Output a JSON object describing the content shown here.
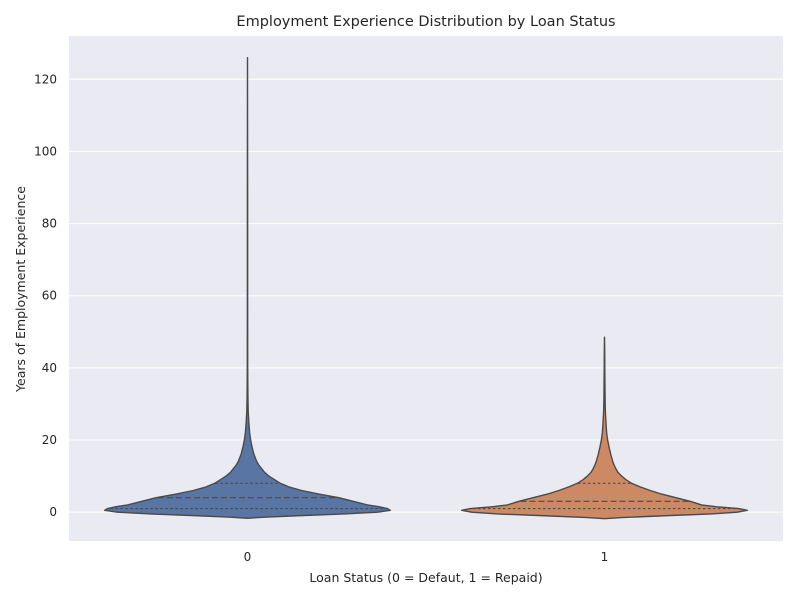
{
  "chart_data": {
    "type": "violin",
    "title": "Employment Experience Distribution by Loan Status",
    "xlabel": "Loan Status (0 = Defaut, 1 = Repaid)",
    "ylabel": "Years of Employment Experience",
    "categories": [
      "0",
      "1"
    ],
    "ylim": [
      -8,
      132
    ],
    "yticks": [
      0,
      20,
      40,
      60,
      80,
      100,
      120
    ],
    "grid": true,
    "background": "#eaeaf2",
    "gridColor": "#ffffff",
    "outlineColor": "#4a4a4a",
    "series": [
      {
        "category": "0",
        "color": "#5875a4",
        "quartiles": [
          1,
          4,
          8
        ],
        "profile": [
          [
            -1.7,
            0.0
          ],
          [
            -1.4,
            0.12
          ],
          [
            -1.0,
            0.35
          ],
          [
            -0.5,
            0.68
          ],
          [
            0.0,
            0.91
          ],
          [
            0.5,
            1.0
          ],
          [
            1.0,
            0.98
          ],
          [
            1.5,
            0.92
          ],
          [
            2.0,
            0.84
          ],
          [
            3.0,
            0.74
          ],
          [
            4.0,
            0.64
          ],
          [
            5.0,
            0.5
          ],
          [
            6.0,
            0.38
          ],
          [
            7.0,
            0.29
          ],
          [
            8.0,
            0.23
          ],
          [
            9.0,
            0.19
          ],
          [
            10.0,
            0.15
          ],
          [
            11.0,
            0.12
          ],
          [
            12.0,
            0.1
          ],
          [
            13.0,
            0.08
          ],
          [
            14.0,
            0.065
          ],
          [
            16.0,
            0.045
          ],
          [
            18.0,
            0.032
          ],
          [
            20.0,
            0.022
          ],
          [
            22.0,
            0.015
          ],
          [
            25.0,
            0.009
          ],
          [
            28.0,
            0.005
          ],
          [
            32.0,
            0.003
          ],
          [
            36.0,
            0.002
          ],
          [
            40.0,
            0.0015
          ],
          [
            60.0,
            0.001
          ],
          [
            90.0,
            0.001
          ],
          [
            126.0,
            0.0
          ]
        ]
      },
      {
        "category": "1",
        "color": "#cc8963",
        "quartiles": [
          1,
          3,
          8
        ],
        "profile": [
          [
            -1.8,
            0.0
          ],
          [
            -1.5,
            0.12
          ],
          [
            -1.0,
            0.42
          ],
          [
            -0.5,
            0.75
          ],
          [
            0.0,
            0.93
          ],
          [
            0.5,
            1.0
          ],
          [
            1.0,
            0.94
          ],
          [
            1.5,
            0.78
          ],
          [
            2.0,
            0.68
          ],
          [
            3.0,
            0.6
          ],
          [
            4.0,
            0.5
          ],
          [
            5.0,
            0.4
          ],
          [
            6.0,
            0.32
          ],
          [
            7.0,
            0.25
          ],
          [
            8.0,
            0.19
          ],
          [
            9.0,
            0.15
          ],
          [
            10.0,
            0.12
          ],
          [
            11.0,
            0.095
          ],
          [
            12.0,
            0.08
          ],
          [
            13.0,
            0.068
          ],
          [
            14.0,
            0.058
          ],
          [
            16.0,
            0.044
          ],
          [
            18.0,
            0.032
          ],
          [
            20.0,
            0.022
          ],
          [
            22.0,
            0.015
          ],
          [
            25.0,
            0.01
          ],
          [
            28.0,
            0.006
          ],
          [
            32.0,
            0.004
          ],
          [
            36.0,
            0.003
          ],
          [
            40.0,
            0.002
          ],
          [
            45.0,
            0.0015
          ],
          [
            48.5,
            0.0
          ]
        ]
      }
    ]
  }
}
